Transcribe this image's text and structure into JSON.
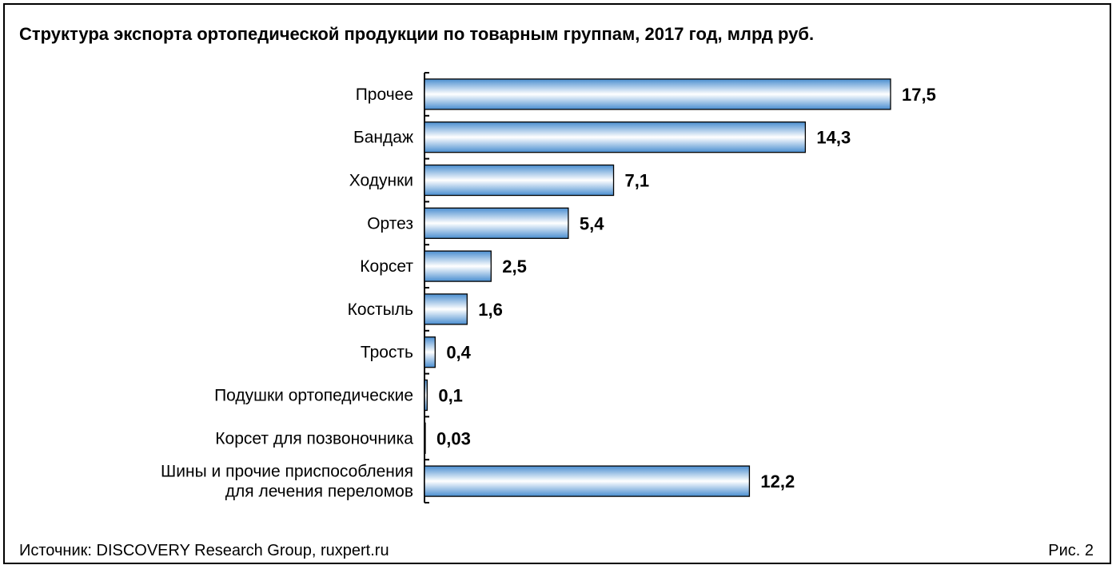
{
  "chart_data": {
    "type": "bar",
    "orientation": "horizontal",
    "title": "Структура экспорта ортопедической продукции по товарным группам, 2017 год, млрд руб.",
    "categories": [
      [
        "Прочее"
      ],
      [
        "Бандаж"
      ],
      [
        "Ходунки"
      ],
      [
        "Ортез"
      ],
      [
        "Корсет"
      ],
      [
        "Костыль"
      ],
      [
        "Трость"
      ],
      [
        "Подушки ортопедические"
      ],
      [
        "Корсет для позвоночника"
      ],
      [
        "Шины и прочие приспособления",
        "для лечения переломов"
      ]
    ],
    "values": [
      17.5,
      14.3,
      7.1,
      5.4,
      2.5,
      1.6,
      0.4,
      0.1,
      0.03,
      12.2
    ],
    "value_labels": [
      "17,5",
      "14,3",
      "7,1",
      "5,4",
      "2,5",
      "1,6",
      "0,4",
      "0,1",
      "0,03",
      "12,2"
    ],
    "xlim": [
      0,
      17.5
    ],
    "grid": false,
    "legend": "none",
    "bar_color": "#4a8ed0",
    "bar_highlight": "#ffffff"
  },
  "footer": {
    "source": "Источник: DISCOVERY Research Group, ruxpert.ru",
    "figure": "Рис. 2"
  }
}
